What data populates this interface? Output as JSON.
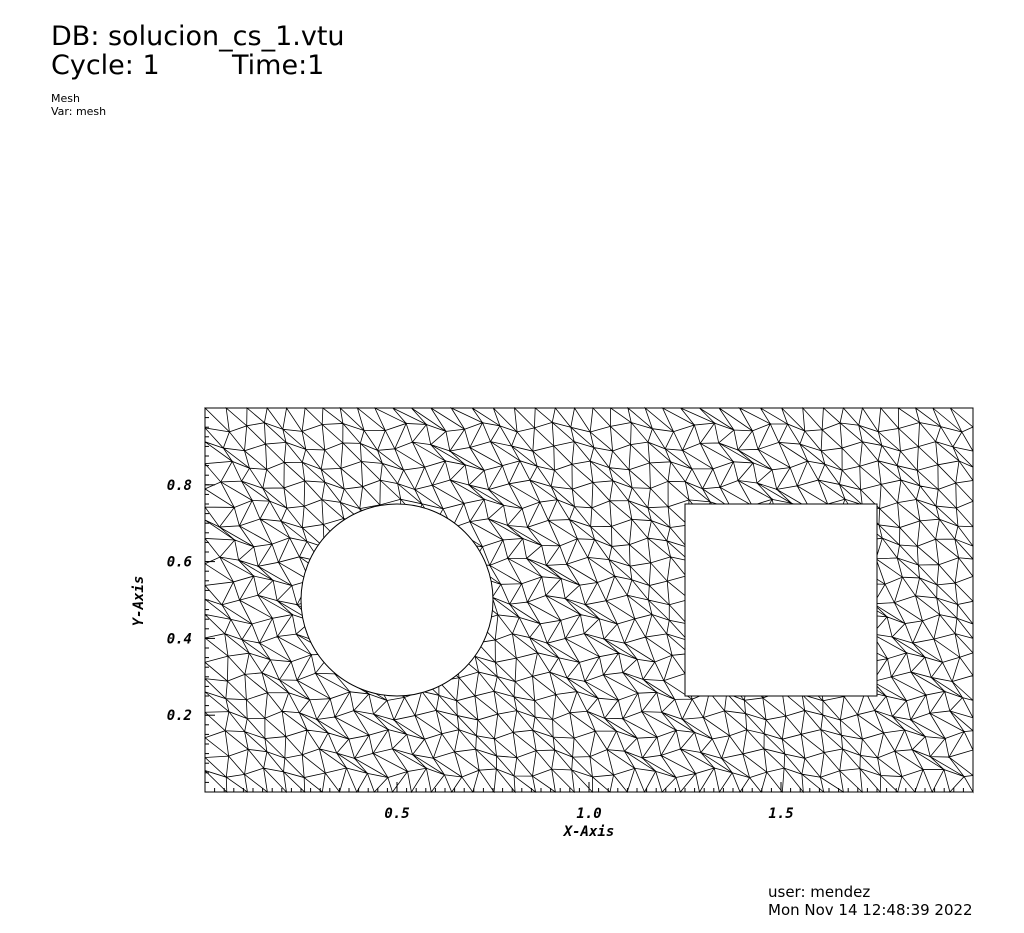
{
  "header": {
    "db": "DB: solucion_cs_1.vtu",
    "cycle": "Cycle: 1",
    "time": "Time:1",
    "plot": "Mesh",
    "var": "Var: mesh"
  },
  "chart_data": {
    "type": "mesh",
    "x_label": "X-Axis",
    "y_label": "Y-Axis",
    "xlim": [
      0,
      2
    ],
    "ylim": [
      0,
      1
    ],
    "xticks": [
      0.5,
      {
        "value": 1,
        "label": "1.0"
      },
      1.5
    ],
    "yticks": [
      0.2,
      0.4,
      0.6,
      0.8
    ]
  },
  "footer": {
    "user": "user: mendez",
    "date": "Mon Nov 14 12:48:39 2022"
  }
}
